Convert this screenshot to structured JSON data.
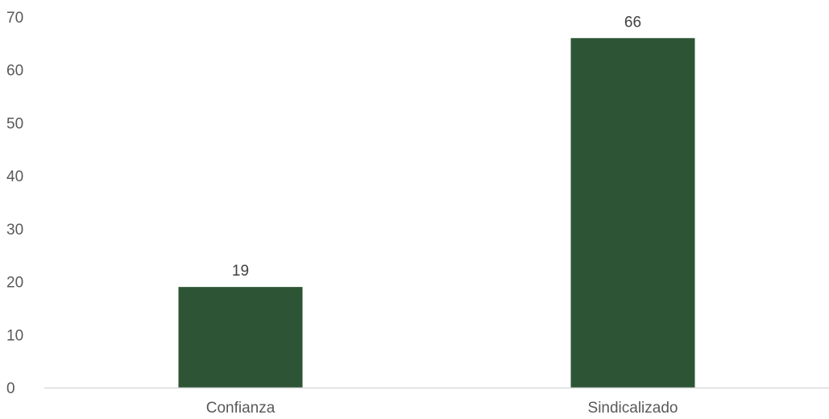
{
  "chart_data": {
    "type": "bar",
    "categories": [
      "Confianza",
      "Sindicalizado"
    ],
    "values": [
      19,
      66
    ],
    "data_labels": [
      "19",
      "66"
    ],
    "ylim": [
      0,
      70
    ],
    "y_ticks": [
      0,
      10,
      20,
      30,
      40,
      50,
      60,
      70
    ],
    "y_tick_labels": [
      "0",
      "10",
      "20",
      "30",
      "40",
      "50",
      "60",
      "70"
    ],
    "grid": false,
    "legend": "none",
    "bar_color": "#2D5535",
    "axis_color": "#D9D9D9"
  }
}
